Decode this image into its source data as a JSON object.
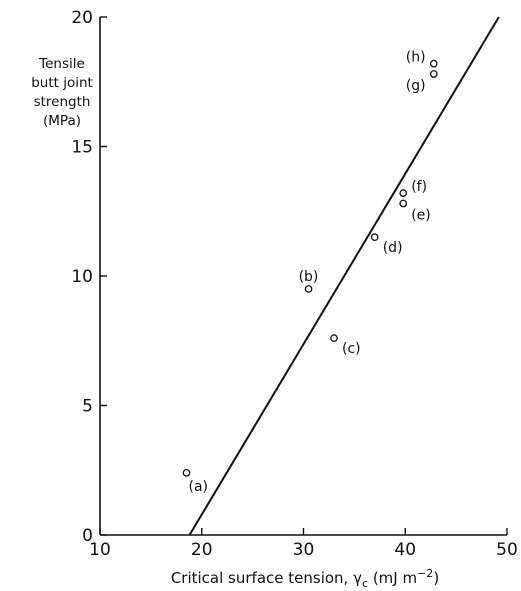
{
  "chart_data": {
    "type": "scatter",
    "title": "",
    "ylabel_lines": [
      "Tensile",
      "butt joint",
      "strength",
      "(MPa)"
    ],
    "xlabel": {
      "prefix": "Critical surface tension, ",
      "symbol": "γ",
      "subscript": "c",
      "unit_open": " (mJ m",
      "unit_exp": "−2",
      "unit_close": ")"
    },
    "xlim": [
      10,
      50
    ],
    "ylim": [
      0,
      20
    ],
    "xticks": [
      10,
      20,
      30,
      40,
      50
    ],
    "yticks": [
      0,
      5,
      10,
      15,
      20
    ],
    "grid": false,
    "points": [
      {
        "label": "(a)",
        "x": 18.5,
        "y": 2.4
      },
      {
        "label": "(b)",
        "x": 30.5,
        "y": 9.5
      },
      {
        "label": "(c)",
        "x": 33.0,
        "y": 7.6
      },
      {
        "label": "(d)",
        "x": 37.0,
        "y": 11.5
      },
      {
        "label": "(e)",
        "x": 39.8,
        "y": 12.8
      },
      {
        "label": "(f)",
        "x": 39.8,
        "y": 13.2
      },
      {
        "label": "(g)",
        "x": 42.8,
        "y": 17.8
      },
      {
        "label": "(h)",
        "x": 42.8,
        "y": 18.2
      }
    ],
    "fit_line": {
      "x": [
        18.8,
        49.2
      ],
      "y": [
        0,
        20
      ]
    }
  }
}
